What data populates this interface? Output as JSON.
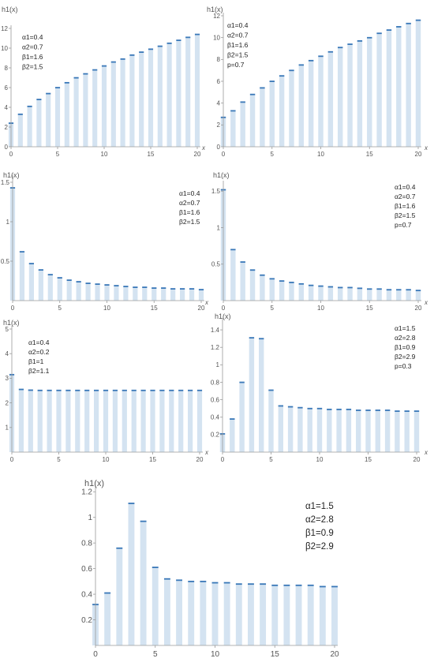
{
  "colors": {
    "bar_fill": "#d4e3f1",
    "bar_top": "#3a78b8",
    "axis": "#9a9a9a",
    "text": "#555555",
    "param_text": "#222222"
  },
  "chart_data": [
    {
      "type": "bar",
      "title": "h1(x)",
      "xlabel": "x",
      "x": [
        0,
        1,
        2,
        3,
        4,
        5,
        6,
        7,
        8,
        9,
        10,
        11,
        12,
        13,
        14,
        15,
        16,
        17,
        18,
        19,
        20
      ],
      "values": [
        2.4,
        3.3,
        4.1,
        4.8,
        5.4,
        6.0,
        6.5,
        7.0,
        7.4,
        7.8,
        8.2,
        8.6,
        8.9,
        9.3,
        9.6,
        9.9,
        10.2,
        10.5,
        10.8,
        11.1,
        11.4
      ],
      "xlim": [
        0,
        20
      ],
      "ylim": [
        0,
        12
      ],
      "xticks": [
        0,
        5,
        10,
        15,
        20
      ],
      "yticks": [
        0,
        2,
        4,
        6,
        8,
        10,
        12
      ],
      "annotations": [
        "α1=0.4",
        "α2=0.7",
        "β1=1.6",
        "β2=1.5"
      ]
    },
    {
      "type": "bar",
      "title": "h1(x)",
      "xlabel": "x",
      "x": [
        0,
        1,
        2,
        3,
        4,
        5,
        6,
        7,
        8,
        9,
        10,
        11,
        12,
        13,
        14,
        15,
        16,
        17,
        18,
        19,
        20
      ],
      "values": [
        2.7,
        3.3,
        4.1,
        4.8,
        5.4,
        6.0,
        6.5,
        7.0,
        7.5,
        7.9,
        8.3,
        8.7,
        9.1,
        9.4,
        9.7,
        10.0,
        10.4,
        10.7,
        11.0,
        11.3,
        11.6
      ],
      "xlim": [
        0,
        20
      ],
      "ylim": [
        0,
        12
      ],
      "xticks": [
        0,
        5,
        10,
        15,
        20
      ],
      "yticks": [
        0,
        2,
        4,
        6,
        8,
        10,
        12
      ],
      "annotations": [
        "α1=0.4",
        "α2=0.7",
        "β1=1.6",
        "β2=1.5",
        "p=0.7"
      ]
    },
    {
      "type": "bar",
      "title": "h1(x)",
      "xlabel": "x",
      "x": [
        0,
        1,
        2,
        3,
        4,
        5,
        6,
        7,
        8,
        9,
        10,
        11,
        12,
        13,
        14,
        15,
        16,
        17,
        18,
        19,
        20
      ],
      "values": [
        1.43,
        0.62,
        0.47,
        0.39,
        0.33,
        0.29,
        0.26,
        0.24,
        0.22,
        0.21,
        0.2,
        0.19,
        0.18,
        0.17,
        0.17,
        0.16,
        0.16,
        0.15,
        0.15,
        0.15,
        0.14
      ],
      "xlim": [
        0,
        20
      ],
      "ylim": [
        0,
        1.55
      ],
      "xticks": [
        0,
        5,
        10,
        15,
        20
      ],
      "yticks": [
        0.5,
        1.0,
        1.5
      ],
      "annotations": [
        "α1=0.4",
        "α2=0.7",
        "β1=1.6",
        "β2=1.5"
      ]
    },
    {
      "type": "bar",
      "title": "h1(x)",
      "xlabel": "x",
      "x": [
        0,
        1,
        2,
        3,
        4,
        5,
        6,
        7,
        8,
        9,
        10,
        11,
        12,
        13,
        14,
        15,
        16,
        17,
        18,
        19,
        20
      ],
      "values": [
        1.52,
        0.7,
        0.53,
        0.42,
        0.35,
        0.3,
        0.27,
        0.25,
        0.23,
        0.21,
        0.2,
        0.19,
        0.18,
        0.18,
        0.17,
        0.16,
        0.16,
        0.15,
        0.15,
        0.15,
        0.14
      ],
      "xlim": [
        0,
        20
      ],
      "ylim": [
        0,
        1.6
      ],
      "xticks": [
        0,
        5,
        10,
        15,
        20
      ],
      "yticks": [
        0.5,
        1.0,
        1.5
      ],
      "annotations": [
        "α1=0.4",
        "α2=0.7",
        "β1=1.6",
        "β2=1.5",
        "p=0.7"
      ]
    },
    {
      "type": "bar",
      "title": "h1(x)",
      "xlabel": "x",
      "x": [
        0,
        1,
        2,
        3,
        4,
        5,
        6,
        7,
        8,
        9,
        10,
        11,
        12,
        13,
        14,
        15,
        16,
        17,
        18,
        19,
        20
      ],
      "values": [
        3.15,
        2.55,
        2.52,
        2.51,
        2.51,
        2.51,
        2.51,
        2.51,
        2.51,
        2.51,
        2.51,
        2.51,
        2.51,
        2.51,
        2.51,
        2.51,
        2.51,
        2.51,
        2.51,
        2.51,
        2.51
      ],
      "xlim": [
        0,
        20
      ],
      "ylim": [
        0,
        5
      ],
      "xticks": [
        0,
        5,
        10,
        15,
        20
      ],
      "yticks": [
        1,
        2,
        3,
        4,
        5
      ],
      "annotations": [
        "α1=0.4",
        "α2=0.2",
        "β1=1",
        "β2=1.1"
      ]
    },
    {
      "type": "bar",
      "title": "h1(x)",
      "xlabel": "x",
      "x": [
        0,
        1,
        2,
        3,
        4,
        5,
        6,
        7,
        8,
        9,
        10,
        11,
        12,
        13,
        14,
        15,
        16,
        17,
        18,
        19,
        20
      ],
      "values": [
        0.21,
        0.38,
        0.8,
        1.31,
        1.3,
        0.71,
        0.53,
        0.52,
        0.51,
        0.5,
        0.5,
        0.49,
        0.49,
        0.49,
        0.48,
        0.48,
        0.48,
        0.48,
        0.47,
        0.47,
        0.47
      ],
      "xlim": [
        0,
        20
      ],
      "ylim": [
        0,
        1.5
      ],
      "xticks": [
        0,
        5,
        10,
        15,
        20
      ],
      "yticks": [
        0.2,
        0.4,
        0.6,
        0.8,
        1.0,
        1.2,
        1.4
      ],
      "annotations": [
        "α1=1.5",
        "α2=2.8",
        "β1=0.9",
        "β2=2.9",
        "p=0.3"
      ]
    },
    {
      "type": "bar",
      "title": "h1(x)",
      "xlabel": "",
      "x": [
        0,
        1,
        2,
        3,
        4,
        5,
        6,
        7,
        8,
        9,
        10,
        11,
        12,
        13,
        14,
        15,
        16,
        17,
        18,
        19,
        20
      ],
      "values": [
        0.32,
        0.41,
        0.76,
        1.11,
        0.97,
        0.61,
        0.52,
        0.51,
        0.5,
        0.5,
        0.49,
        0.49,
        0.48,
        0.48,
        0.48,
        0.47,
        0.47,
        0.47,
        0.47,
        0.46,
        0.46
      ],
      "xlim": [
        0,
        20
      ],
      "ylim": [
        0,
        1.22
      ],
      "xticks": [
        0,
        5,
        10,
        15,
        20
      ],
      "yticks": [
        0.2,
        0.4,
        0.6,
        0.8,
        1.0,
        1.2
      ],
      "annotations": [
        "α1=1.5",
        "α2=2.8",
        "β1=0.9",
        "β2=2.9"
      ]
    }
  ]
}
